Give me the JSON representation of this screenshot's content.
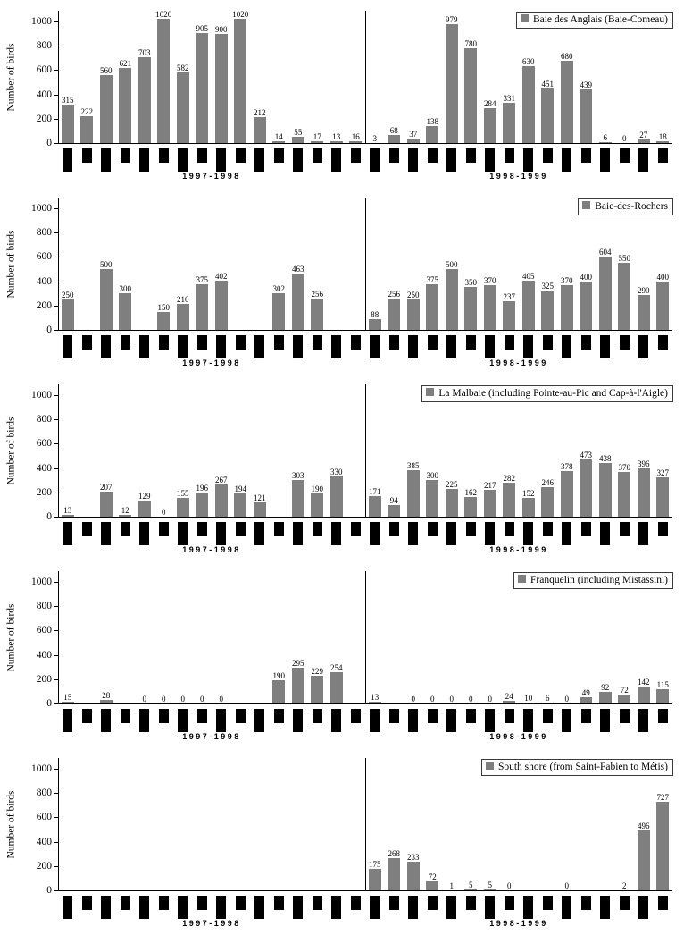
{
  "meta": {
    "y_axis_label": "Number of birds",
    "y_ticks": [
      0,
      200,
      400,
      600,
      800,
      1000
    ],
    "y_max": 1000,
    "bar_color": "#7f7f7f",
    "month_tick_color": "#000000",
    "period_labels": [
      "1997-1998",
      "1998-1999"
    ]
  },
  "chart_data": [
    {
      "type": "bar",
      "legend": "Baie des Anglais (Baie-Comeau)",
      "ylabel": "Number of birds",
      "ylim": [
        0,
        1000
      ],
      "periods": [
        {
          "label": "1997-1998",
          "values": [
            315,
            222,
            560,
            621,
            703,
            1020,
            582,
            905,
            900,
            1020,
            212,
            14,
            55,
            17,
            13,
            16
          ]
        },
        {
          "label": "1998-1999",
          "values": [
            3,
            68,
            37,
            138,
            979,
            780,
            284,
            331,
            630,
            451,
            680,
            439,
            6,
            0,
            27,
            18
          ]
        }
      ]
    },
    {
      "type": "bar",
      "legend": "Baie-des-Rochers",
      "ylabel": "Number of birds",
      "ylim": [
        0,
        1000
      ],
      "periods": [
        {
          "label": "1997-1998",
          "values": [
            250,
            null,
            500,
            300,
            null,
            150,
            210,
            375,
            402,
            null,
            null,
            302,
            463,
            256,
            null,
            null
          ]
        },
        {
          "label": "1998-1999",
          "values": [
            88,
            256,
            250,
            375,
            500,
            350,
            370,
            237,
            405,
            325,
            370,
            400,
            604,
            550,
            290,
            400
          ]
        }
      ]
    },
    {
      "type": "bar",
      "legend": "La Malbaie (including Pointe-au-Pic and Cap-à-l'Aigle)",
      "ylabel": "Number of birds",
      "ylim": [
        0,
        1000
      ],
      "periods": [
        {
          "label": "1997-1998",
          "values": [
            13,
            null,
            207,
            12,
            129,
            0,
            155,
            196,
            267,
            194,
            121,
            null,
            303,
            190,
            330,
            null
          ]
        },
        {
          "label": "1998-1999",
          "values": [
            171,
            94,
            385,
            300,
            225,
            162,
            217,
            282,
            152,
            246,
            378,
            473,
            438,
            370,
            396,
            327
          ]
        }
      ]
    },
    {
      "type": "bar",
      "legend": "Franquelin (including Mistassini)",
      "ylabel": "Number of birds",
      "ylim": [
        0,
        1000
      ],
      "periods": [
        {
          "label": "1997-1998",
          "values": [
            15,
            null,
            28,
            null,
            0,
            0,
            0,
            0,
            0,
            null,
            null,
            190,
            295,
            229,
            254,
            null
          ]
        },
        {
          "label": "1998-1999",
          "values": [
            13,
            null,
            0,
            0,
            0,
            0,
            0,
            24,
            10,
            6,
            0,
            49,
            92,
            72,
            142,
            115
          ]
        }
      ]
    },
    {
      "type": "bar",
      "legend": "South shore (from Saint-Fabien to Métis)",
      "ylabel": "Number of birds",
      "ylim": [
        0,
        1000
      ],
      "periods": [
        {
          "label": "1997-1998",
          "values": [
            null,
            null,
            null,
            null,
            null,
            null,
            null,
            null,
            null,
            null,
            null,
            null,
            null,
            null,
            null,
            null
          ]
        },
        {
          "label": "1998-1999",
          "values": [
            175,
            268,
            233,
            72,
            1,
            5,
            5,
            0,
            null,
            null,
            0,
            null,
            null,
            2,
            496,
            727
          ]
        }
      ]
    }
  ]
}
